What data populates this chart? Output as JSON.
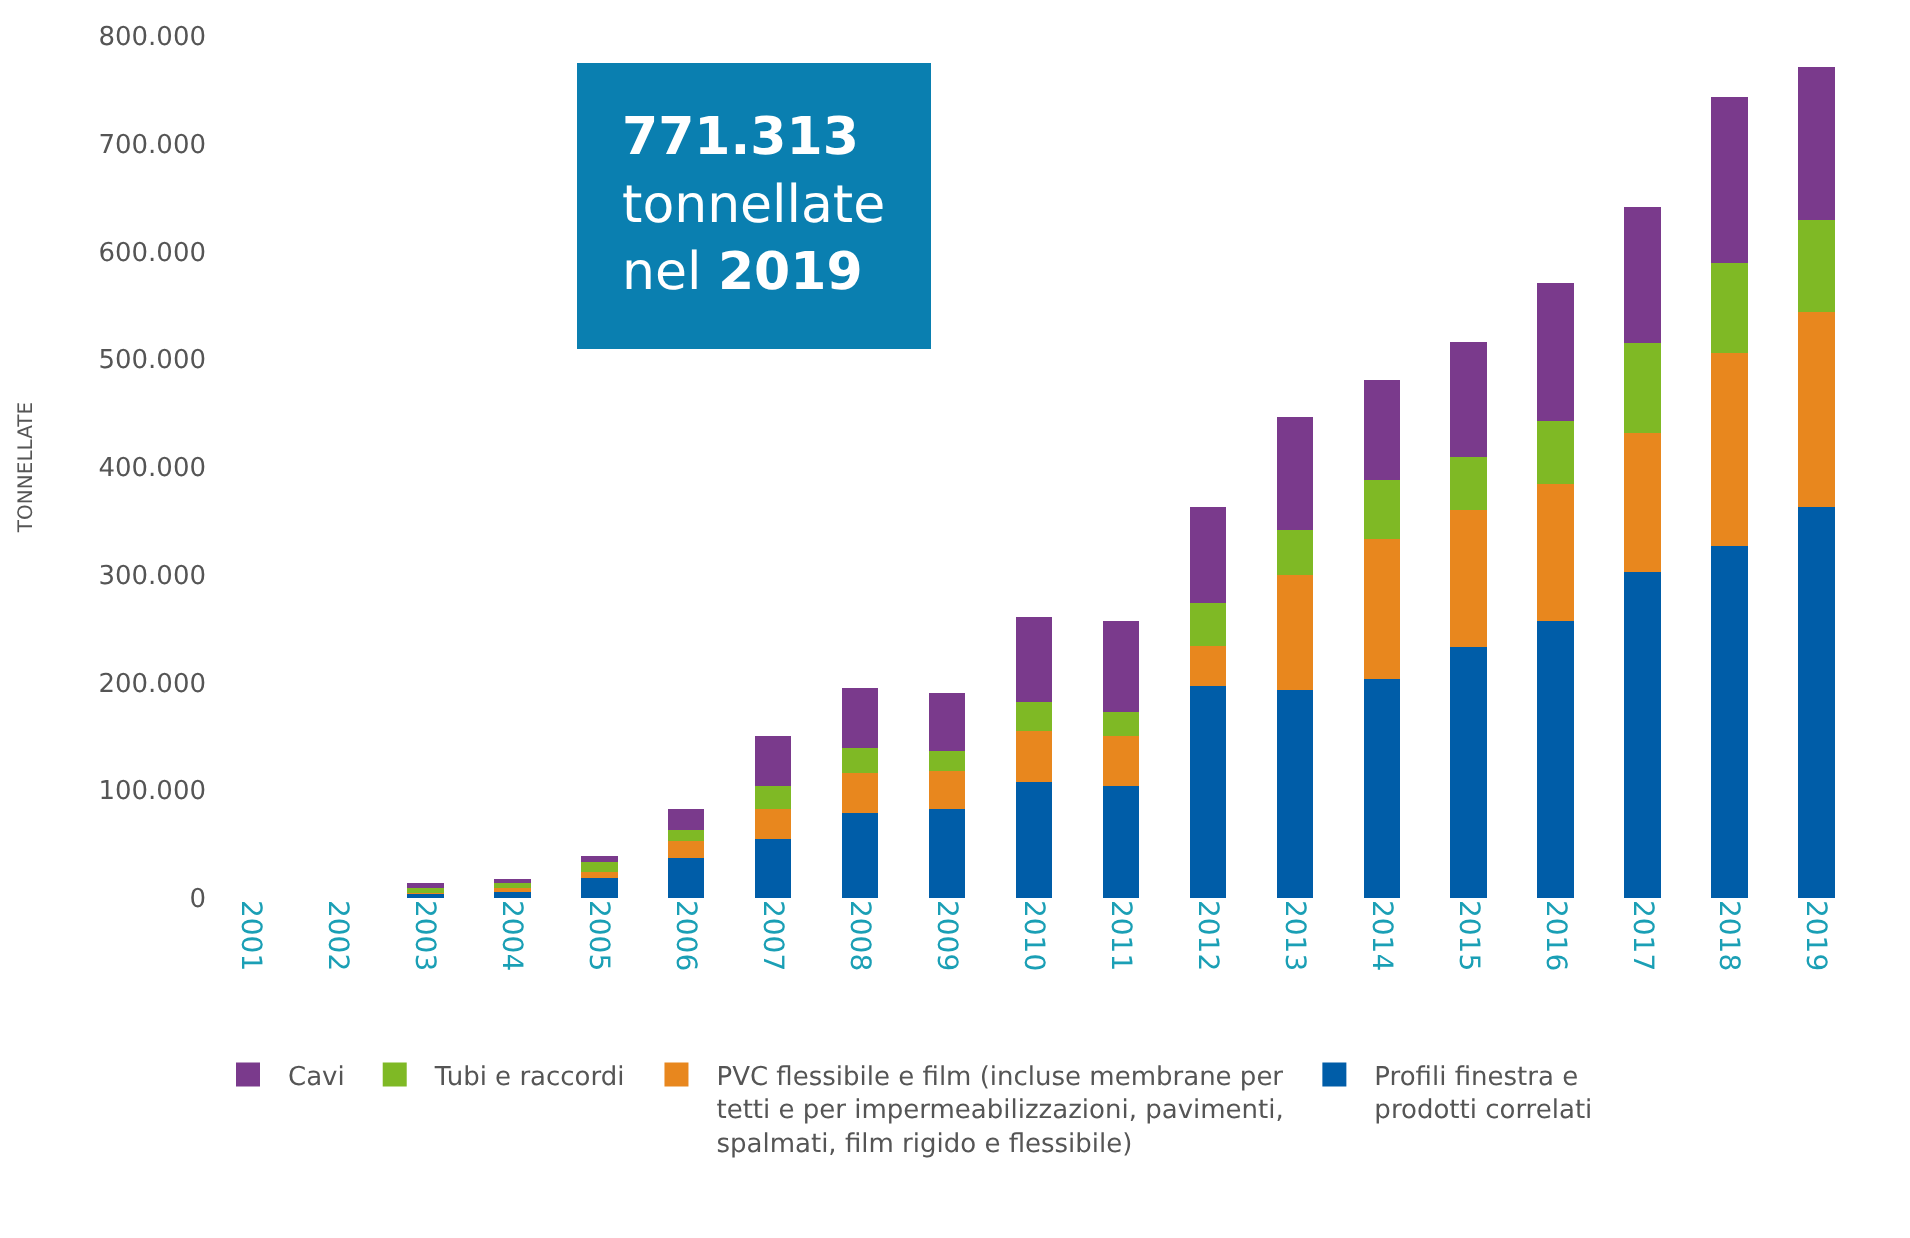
{
  "chart_data": {
    "type": "bar",
    "stacked": true,
    "ylabel": "TONNELLATE",
    "categories": [
      "2001",
      "2002",
      "2003",
      "2004",
      "2005",
      "2006",
      "2007",
      "2008",
      "2009",
      "2010",
      "2011",
      "2012",
      "2013",
      "2014",
      "2015",
      "2016",
      "2017",
      "2018",
      "2019"
    ],
    "series": [
      {
        "name": "Profili finestra e prodotti correlati",
        "color": "#005da8",
        "values": [
          null,
          null,
          4000,
          7000,
          19000,
          37000,
          55000,
          79000,
          83000,
          108000,
          104000,
          197000,
          193000,
          203000,
          233000,
          257000,
          303000,
          327000,
          363000
        ]
      },
      {
        "name": "PVC flessibile e film (incluse membrane per tetti e per impermeabilizzazioni, pavimenti, spalmati, film rigido e flessibile)",
        "color": "#e8871e",
        "values": [
          null,
          null,
          1000,
          2000,
          5000,
          16000,
          28000,
          37000,
          35000,
          47000,
          46000,
          37000,
          107000,
          130000,
          127000,
          127000,
          129000,
          179000,
          181000
        ]
      },
      {
        "name": "Tubi e raccordi",
        "color": "#7fb925",
        "values": [
          null,
          null,
          6000,
          5000,
          9000,
          10000,
          21000,
          23000,
          18000,
          27000,
          23000,
          40000,
          42000,
          55000,
          49000,
          59000,
          83000,
          83000,
          85000
        ]
      },
      {
        "name": "Cavi",
        "color": "#7a3a8c",
        "values": [
          null,
          null,
          3000,
          4000,
          6000,
          20000,
          46000,
          56000,
          54000,
          79000,
          84000,
          89000,
          104000,
          93000,
          107000,
          128000,
          126000,
          154000,
          142000
        ]
      }
    ],
    "ylim": [
      0,
      800000
    ],
    "yticks": [
      {
        "value": 0,
        "label": "0"
      },
      {
        "value": 100000,
        "label": "100.000"
      },
      {
        "value": 200000,
        "label": "200.000"
      },
      {
        "value": 300000,
        "label": "300.000"
      },
      {
        "value": 400000,
        "label": "400.000"
      },
      {
        "value": 500000,
        "label": "500.000"
      },
      {
        "value": 600000,
        "label": "600.000"
      },
      {
        "value": 700000,
        "label": "700.000"
      },
      {
        "value": 800000,
        "label": "800.000"
      }
    ],
    "legend": "bottom",
    "annotations": [
      "771.313 tonnellate nel 2019"
    ]
  }
}
